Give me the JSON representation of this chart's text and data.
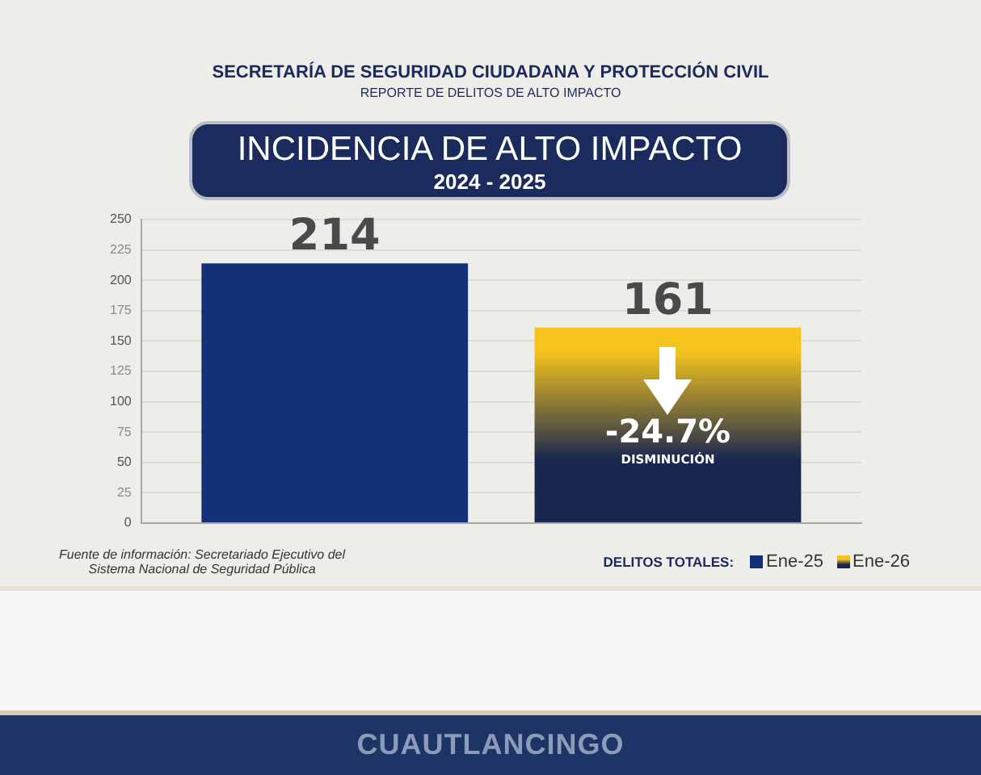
{
  "chart_data": {
    "type": "bar",
    "title": "INCIDENCIA DE ALTO IMPACTO",
    "subtitle": "2024 - 2025",
    "annotations": [
      "SECRETARÍA DE SEGURIDAD CIUDADANA Y PROTECCIÓN CIVIL",
      "REPORTE DE DELITOS DE ALTO IMPACTO",
      "-24.7%",
      "DISMINUCIÓN",
      "Fuente de información: Secretariado Ejecutivo del Sistema Nacional de Seguridad Pública",
      "CUAUTLANCINGO"
    ],
    "categories": [
      null
    ],
    "series": [
      {
        "name": "Ene-25",
        "color": "#143177",
        "values": [
          214
        ]
      },
      {
        "name": "Ene-26",
        "color": "#f6c51d",
        "values": [
          161
        ]
      }
    ],
    "ylim": [
      0,
      250
    ],
    "yticks": [
      0,
      25,
      50,
      75,
      100,
      125,
      150,
      175,
      200,
      225,
      250
    ],
    "grid": "y",
    "legend": "bottom right",
    "legend_title": "DELITOS TOTALES:",
    "data_labels": true
  }
}
